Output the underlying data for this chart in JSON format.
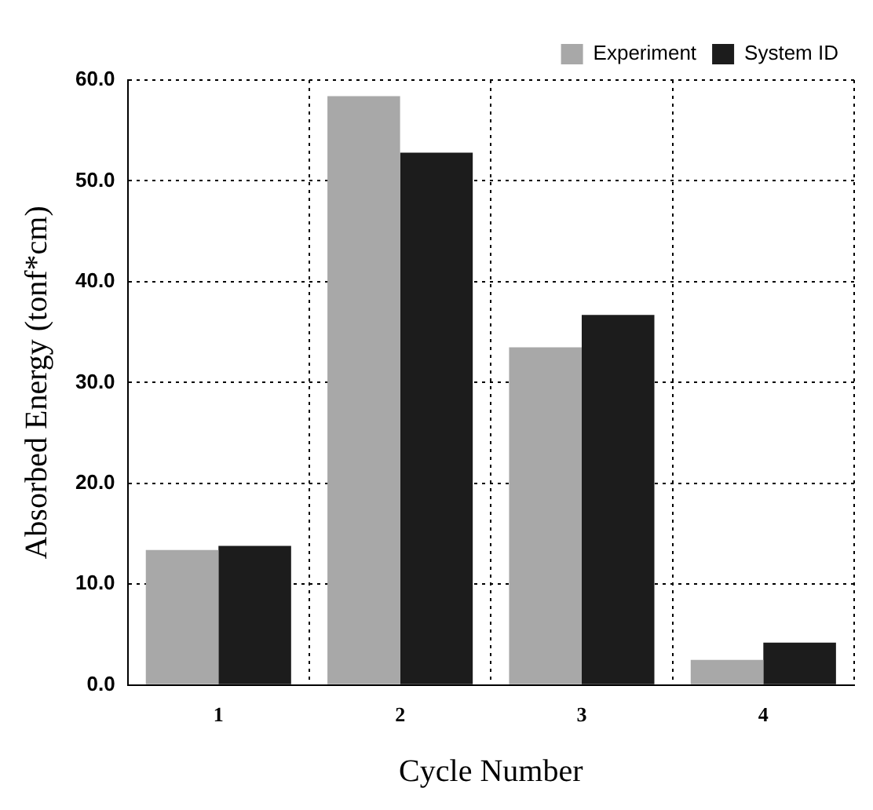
{
  "chart_data": {
    "type": "bar",
    "xlabel": "Cycle Number",
    "ylabel": "Absorbed Energy (tonf*cm)",
    "categories": [
      "1",
      "2",
      "3",
      "4"
    ],
    "series": [
      {
        "name": "Experiment",
        "color": "#a8a8a8",
        "values": [
          13.4,
          58.4,
          33.5,
          2.5
        ]
      },
      {
        "name": "System ID",
        "color": "#1c1c1c",
        "values": [
          13.8,
          52.8,
          36.7,
          4.2
        ]
      }
    ],
    "ylim": [
      0,
      60
    ],
    "yticks": [
      {
        "value": 0,
        "label": "0.0"
      },
      {
        "value": 10,
        "label": "10.0"
      },
      {
        "value": 20,
        "label": "20.0"
      },
      {
        "value": 30,
        "label": "30.0"
      },
      {
        "value": 40,
        "label": "40.0"
      },
      {
        "value": 50,
        "label": "50.0"
      },
      {
        "value": 60,
        "label": "60.0"
      }
    ],
    "grid": true,
    "legend": "top right"
  }
}
